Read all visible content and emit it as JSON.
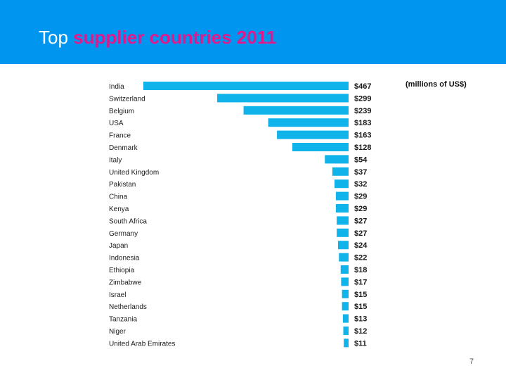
{
  "slide": {
    "title_lead": "Top",
    "title_accent": "supplier countries 2011",
    "units_note": "(millions of US$)",
    "page_number": "7"
  },
  "colors": {
    "header_bg": "#0096f0",
    "title_accent": "#e0198c",
    "bar": "#11b4ea"
  },
  "chart_data": {
    "type": "bar",
    "orientation": "horizontal",
    "categories": [
      "India",
      "Switzerland",
      "Belgium",
      "USA",
      "France",
      "Denmark",
      "Italy",
      "United Kingdom",
      "Pakistan",
      "China",
      "Kenya",
      "South Africa",
      "Germany",
      "Japan",
      "Indonesia",
      "Ethiopia",
      "Zimbabwe",
      "Israel",
      "Netherlands",
      "Tanzania",
      "Niger",
      "United Arab Emirates"
    ],
    "values": [
      467,
      299,
      239,
      183,
      163,
      128,
      54,
      37,
      32,
      29,
      29,
      27,
      27,
      24,
      22,
      18,
      17,
      15,
      15,
      13,
      12,
      11
    ],
    "value_labels": [
      "$467",
      "$299",
      "$239",
      "$183",
      "$163",
      "$128",
      "$54",
      "$37",
      "$32",
      "$29",
      "$29",
      "$27",
      "$27",
      "$24",
      "$22",
      "$18",
      "$17",
      "$15",
      "$15",
      "$13",
      "$12",
      "$11"
    ],
    "xlim": [
      0,
      467
    ],
    "grid": false,
    "legend": "none"
  }
}
